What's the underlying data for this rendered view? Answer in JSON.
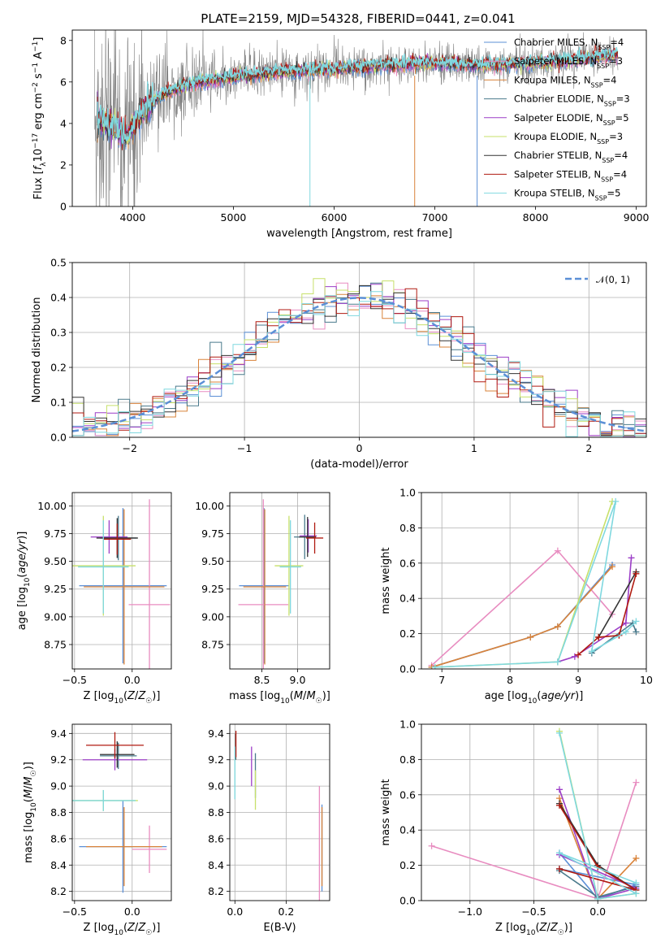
{
  "figure": {
    "title": "PLATE=2159, MJD=54328, FIBERID=0441, z=0.041"
  },
  "colors": {
    "series": [
      "#5b8fd6",
      "#e88cc0",
      "#d9833a",
      "#4a7a8c",
      "#9c3ec7",
      "#c7e06a",
      "#333333",
      "#b01a10",
      "#7fd8df"
    ],
    "data_spectrum": "#808080",
    "gaussian": "#5b8fd6",
    "grid": "#b0b0b0"
  },
  "chart_data": [
    {
      "id": "spectrum",
      "type": "line",
      "xlabel": "wavelength [Angstrom, rest frame]",
      "ylabel": "Flux [f_λ 10^-17 erg cm^-2 s^-1 A^-1]",
      "xlim": [
        3400,
        9100
      ],
      "ylim": [
        0,
        8.5
      ],
      "xticks": [
        4000,
        5000,
        6000,
        7000,
        8000,
        9000
      ],
      "yticks": [
        0,
        2,
        4,
        6,
        8
      ],
      "grid": false,
      "legend": "right",
      "legend_entries": [
        {
          "name": "Chabrier MILES",
          "n": "4"
        },
        {
          "name": "Salpeter MILES",
          "n": "3"
        },
        {
          "name": "Kroupa MILES",
          "n": "4"
        },
        {
          "name": "Chabrier ELODIE",
          "n": "3"
        },
        {
          "name": "Salpeter ELODIE",
          "n": "5"
        },
        {
          "name": "Kroupa ELODIE",
          "n": "3"
        },
        {
          "name": "Chabrier STELIB",
          "n": "4"
        },
        {
          "name": "Salpeter STELIB",
          "n": "4"
        },
        {
          "name": "Kroupa STELIB",
          "n": "5"
        }
      ],
      "model_trend": {
        "x": [
          3650,
          3800,
          3950,
          4100,
          4300,
          4500,
          4800,
          5100,
          5500,
          6000,
          6500,
          7000,
          7500,
          8000,
          8500,
          8800
        ],
        "y": [
          4.3,
          3.8,
          3.4,
          4.6,
          5.4,
          5.8,
          6.1,
          6.3,
          6.5,
          6.6,
          6.8,
          6.9,
          6.8,
          6.9,
          7.1,
          7.3
        ]
      }
    },
    {
      "id": "residuals",
      "type": "line",
      "xlabel": "(data-model)/error",
      "ylabel": "Normed distribution",
      "xlim": [
        -2.5,
        2.5
      ],
      "ylim": [
        0,
        0.5
      ],
      "xticks": [
        -2,
        -1,
        0,
        1,
        2
      ],
      "yticks": [
        0.0,
        0.1,
        0.2,
        0.3,
        0.4,
        0.5
      ],
      "grid": true,
      "legend": "top-right",
      "legend_label": "𝒩(0, 1)"
    },
    {
      "id": "age-vs-z",
      "type": "scatter",
      "xlabel": "Z [log10(Z/Z☉)]",
      "ylabel": "age [log10(age/yr)]",
      "xlim": [
        -0.52,
        0.34
      ],
      "ylim": [
        8.53,
        10.12
      ],
      "xticks": [
        -0.5,
        0.0
      ],
      "yticks": [
        8.75,
        9.0,
        9.25,
        9.5,
        9.75,
        10.0
      ],
      "grid": true
    },
    {
      "id": "age-vs-mass",
      "type": "scatter",
      "xlabel": "mass [log10(M/M☉)]",
      "ylabel": "",
      "xlim": [
        8.05,
        9.45
      ],
      "ylim": [
        8.53,
        10.12
      ],
      "xticks": [
        8.5,
        9.0
      ],
      "yticks": [
        8.75,
        9.0,
        9.25,
        9.5,
        9.75,
        10.0
      ],
      "grid": true
    },
    {
      "id": "weight-vs-age",
      "type": "line",
      "xlabel": "age [log10(age/yr)]",
      "ylabel": "mass weight",
      "xlim": [
        6.7,
        10.0
      ],
      "ylim": [
        0,
        1.0
      ],
      "xticks": [
        7,
        8,
        9,
        10
      ],
      "yticks": [
        0.0,
        0.2,
        0.4,
        0.6,
        0.8,
        1.0
      ],
      "grid": true,
      "series": [
        {
          "points": [
            [
              6.85,
              0.01
            ],
            [
              8.3,
              0.18
            ],
            [
              8.7,
              0.24
            ],
            [
              9.5,
              0.59
            ]
          ]
        },
        {
          "points": [
            [
              6.85,
              0.02
            ],
            [
              8.7,
              0.67
            ],
            [
              9.5,
              0.31
            ]
          ]
        },
        {
          "points": [
            [
              6.85,
              0.01
            ],
            [
              8.3,
              0.18
            ],
            [
              8.7,
              0.24
            ],
            [
              9.5,
              0.58
            ]
          ]
        },
        {
          "points": [
            [
              9.2,
              0.09
            ],
            [
              9.8,
              0.26
            ],
            [
              9.85,
              0.21
            ]
          ]
        },
        {
          "points": [
            [
              8.7,
              0.04
            ],
            [
              8.95,
              0.07
            ],
            [
              9.7,
              0.26
            ],
            [
              9.78,
              0.63
            ]
          ]
        },
        {
          "points": [
            [
              6.9,
              0.01
            ],
            [
              8.7,
              0.04
            ],
            [
              9.5,
              0.95
            ]
          ]
        },
        {
          "points": [
            [
              9.3,
              0.18
            ],
            [
              9.85,
              0.55
            ]
          ]
        },
        {
          "points": [
            [
              9.0,
              0.08
            ],
            [
              9.3,
              0.18
            ],
            [
              9.6,
              0.19
            ],
            [
              9.85,
              0.54
            ]
          ]
        },
        {
          "points": [
            [
              6.9,
              0.01
            ],
            [
              8.7,
              0.04
            ],
            [
              9.55,
              0.95
            ],
            [
              9.2,
              0.1
            ],
            [
              9.7,
              0.21
            ],
            [
              9.85,
              0.27
            ]
          ]
        }
      ]
    },
    {
      "id": "mass-vs-z",
      "type": "scatter",
      "xlabel": "Z [log10(Z/Z☉)]",
      "ylabel": "mass [log10(M/M☉)]",
      "xlim": [
        -0.52,
        0.34
      ],
      "ylim": [
        8.13,
        9.47
      ],
      "xticks": [
        -0.5,
        0.0
      ],
      "yticks": [
        8.2,
        8.4,
        8.6,
        8.8,
        9.0,
        9.2,
        9.4
      ],
      "grid": true
    },
    {
      "id": "mass-vs-ebv",
      "type": "scatter",
      "xlabel": "E(B-V)",
      "ylabel": "",
      "xlim": [
        -0.02,
        0.37
      ],
      "ylim": [
        8.13,
        9.47
      ],
      "xticks": [
        0.0,
        0.2
      ],
      "yticks": [
        8.2,
        8.4,
        8.6,
        8.8,
        9.0,
        9.2,
        9.4
      ],
      "grid": true
    },
    {
      "id": "weight-vs-z",
      "type": "line",
      "xlabel": "Z [log10(Z/Z☉)]",
      "ylabel": "mass weight",
      "xlim": [
        -1.38,
        0.38
      ],
      "ylim": [
        0,
        1.0
      ],
      "xticks": [
        -1.0,
        -0.5,
        0.0
      ],
      "yticks": [
        0.0,
        0.2,
        0.4,
        0.6,
        0.8,
        1.0
      ],
      "grid": true,
      "series": [
        {
          "points": [
            [
              -0.3,
              0.27
            ],
            [
              0.0,
              0.01
            ],
            [
              0.3,
              0.09
            ],
            [
              -0.3,
              0.18
            ]
          ]
        },
        {
          "points": [
            [
              -1.3,
              0.31
            ],
            [
              0.0,
              0.01
            ],
            [
              0.3,
              0.67
            ]
          ]
        },
        {
          "points": [
            [
              -0.3,
              0.58
            ],
            [
              0.0,
              0.01
            ],
            [
              0.3,
              0.24
            ],
            [
              0.0,
              0.01
            ]
          ]
        },
        {
          "points": [
            [
              -0.3,
              0.17
            ],
            [
              0.0,
              0.02
            ],
            [
              0.3,
              0.08
            ]
          ]
        },
        {
          "points": [
            [
              -0.3,
              0.63
            ],
            [
              0.0,
              0.01
            ],
            [
              0.3,
              0.07
            ],
            [
              -0.3,
              0.26
            ]
          ]
        },
        {
          "points": [
            [
              -0.3,
              0.96
            ],
            [
              0.0,
              0.01
            ],
            [
              0.3,
              0.04
            ]
          ]
        },
        {
          "points": [
            [
              -0.3,
              0.55
            ],
            [
              0.0,
              0.2
            ],
            [
              0.3,
              0.06
            ]
          ]
        },
        {
          "points": [
            [
              -0.3,
              0.54
            ],
            [
              0.0,
              0.19
            ],
            [
              0.3,
              0.06
            ],
            [
              -0.3,
              0.18
            ]
          ]
        },
        {
          "points": [
            [
              -0.3,
              0.95
            ],
            [
              0.0,
              0.01
            ],
            [
              0.3,
              0.04
            ],
            [
              -0.3,
              0.27
            ],
            [
              0.3,
              0.1
            ]
          ]
        }
      ]
    }
  ]
}
